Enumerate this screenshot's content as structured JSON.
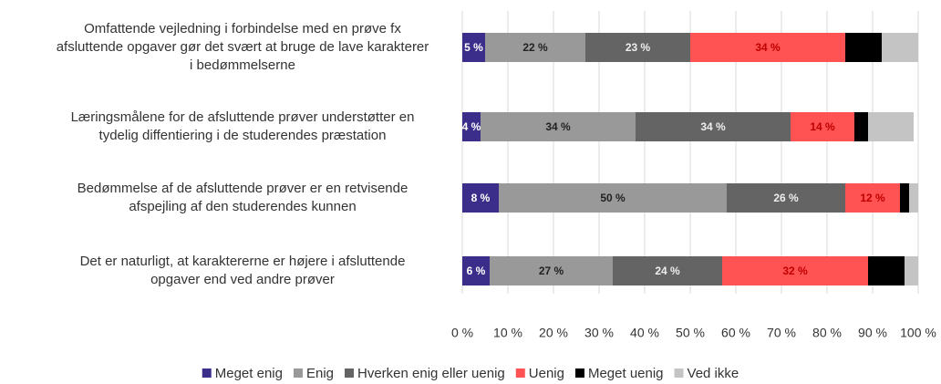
{
  "chart_data": {
    "type": "stacked-bar-horizontal",
    "categories": [
      "Omfattende vejledning i forbindelse med en prøve fx\nafsluttende opgaver gør det svært at bruge de lave karakterer\ni bedømmelserne",
      "Læringsmålene for de afsluttende prøver understøtter en\ntydelig diffentiering i de studerendes præstation",
      "Bedømmelse af de afsluttende prøver er en retvisende\nafspejling af den studerendes kunnen",
      "Det er naturligt, at karaktererne er højere i afsluttende\nopgaver end ved andre prøver"
    ],
    "series": [
      {
        "name": "Meget enig",
        "color": "#3b2e8a",
        "label_color": "#ffffff",
        "values": [
          5,
          4,
          8,
          6
        ],
        "value_labels": [
          "5 %",
          "4 %",
          "8 %",
          "6 %"
        ]
      },
      {
        "name": "Enig",
        "color": "#999999",
        "label_color": "#222222",
        "values": [
          22,
          34,
          50,
          27
        ],
        "value_labels": [
          "22 %",
          "34 %",
          "50 %",
          "27 %"
        ]
      },
      {
        "name": "Hverken enig eller uenig",
        "color": "#646464",
        "label_color": "#eeeeee",
        "values": [
          23,
          34,
          26,
          24
        ],
        "value_labels": [
          "23 %",
          "34 %",
          "26 %",
          "24 %"
        ]
      },
      {
        "name": "Uenig",
        "color": "#ff5252",
        "label_color": "#c00000",
        "values": [
          34,
          14,
          12,
          32
        ],
        "value_labels": [
          "34 %",
          "14 %",
          "12 %",
          "32 %"
        ]
      },
      {
        "name": "Meget uenig",
        "color": "#000000",
        "values": [
          8,
          3,
          2,
          8
        ]
      },
      {
        "name": "Ved ikke",
        "color": "#c4c4c4",
        "values": [
          8,
          10,
          2,
          3
        ]
      }
    ],
    "xlim": [
      0,
      100
    ],
    "xticks": [
      {
        "value": 0,
        "label": "0 %"
      },
      {
        "value": 10,
        "label": "10 %"
      },
      {
        "value": 20,
        "label": "20 %"
      },
      {
        "value": 30,
        "label": "30 %"
      },
      {
        "value": 40,
        "label": "40 %"
      },
      {
        "value": 50,
        "label": "50 %"
      },
      {
        "value": 60,
        "label": "60 %"
      },
      {
        "value": 70,
        "label": "70 %"
      },
      {
        "value": 80,
        "label": "80 %"
      },
      {
        "value": 90,
        "label": "90 %"
      },
      {
        "value": 100,
        "label": "100 %"
      }
    ],
    "grid": true,
    "legend": "bottom"
  }
}
